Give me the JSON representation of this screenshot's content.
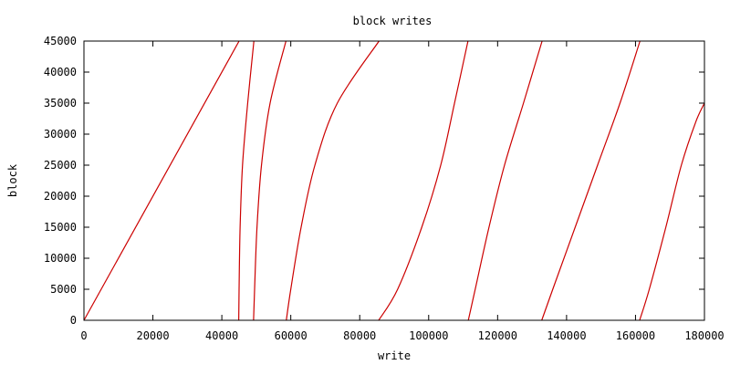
{
  "chart_data": {
    "type": "line",
    "title": "block writes",
    "xlabel": "write",
    "ylabel": "block",
    "xlim": [
      0,
      180000
    ],
    "ylim": [
      0,
      45000
    ],
    "xticks": [
      0,
      20000,
      40000,
      60000,
      80000,
      100000,
      120000,
      140000,
      160000,
      180000
    ],
    "yticks": [
      0,
      5000,
      10000,
      15000,
      20000,
      25000,
      30000,
      35000,
      40000,
      45000
    ],
    "xtick_labels": [
      "0",
      "20000",
      "40000",
      "60000",
      "80000",
      "100000",
      "120000",
      "140000",
      "160000",
      "180000"
    ],
    "ytick_labels": [
      "0",
      "5000",
      "10000",
      "15000",
      "20000",
      "25000",
      "30000",
      "35000",
      "40000",
      "45000"
    ],
    "grid": false,
    "legend": "none",
    "color": "#cc0000",
    "series": [
      {
        "x": [
          0,
          45000
        ],
        "y": [
          0,
          45000
        ]
      },
      {
        "x": [
          44900,
          45000,
          45300,
          46000,
          47500,
          49300
        ],
        "y": [
          0,
          5000,
          15000,
          25000,
          35000,
          45000
        ]
      },
      {
        "x": [
          49200,
          49500,
          50200,
          51500,
          54000,
          58600
        ],
        "y": [
          0,
          5000,
          15000,
          25000,
          35000,
          45000
        ]
      },
      {
        "x": [
          58700,
          60000,
          63000,
          67000,
          73500,
          85600
        ],
        "y": [
          0,
          5000,
          15000,
          25000,
          35000,
          45000
        ]
      },
      {
        "x": [
          85500,
          91000,
          98000,
          103500,
          107500,
          111400
        ],
        "y": [
          0,
          5000,
          15000,
          25000,
          35000,
          45000
        ]
      },
      {
        "x": [
          111500,
          113500,
          117500,
          122000,
          127500,
          132900
        ],
        "y": [
          0,
          5000,
          15000,
          25000,
          35000,
          45000
        ]
      },
      {
        "x": [
          132800,
          136000,
          142500,
          149000,
          155500,
          161300
        ],
        "y": [
          0,
          5000,
          15000,
          25000,
          35000,
          45000
        ]
      },
      {
        "x": [
          161200,
          164000,
          168800,
          173300,
          177500,
          180000
        ],
        "y": [
          0,
          5000,
          15000,
          25000,
          32000,
          35000
        ]
      }
    ]
  }
}
